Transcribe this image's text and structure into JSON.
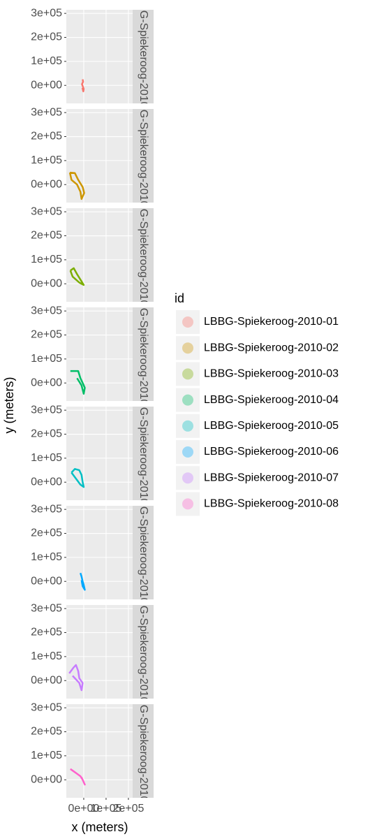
{
  "chart_data": {
    "type": "line",
    "x_label": "x (meters)",
    "y_label": "y (meters)",
    "legend_title": "id",
    "xlim": [
      -78000,
      219000
    ],
    "ylim": [
      -75000,
      315000
    ],
    "xticks": [
      {
        "value": 0,
        "label": "0e+00"
      },
      {
        "value": 100000,
        "label": "1e+05"
      },
      {
        "value": 200000,
        "label": "2e+05"
      }
    ],
    "yticks": [
      {
        "value": 0,
        "label": "0e+00"
      },
      {
        "value": 100000,
        "label": "1e+05"
      },
      {
        "value": 200000,
        "label": "2e+05"
      },
      {
        "value": 300000,
        "label": "3e+05"
      }
    ],
    "grid": true,
    "series": [
      {
        "name": "LBBG-Spiekeroog-2010-01",
        "color": "#F8766D",
        "x": [
          -5000,
          -3000,
          -8000,
          -4000,
          0,
          -2000,
          -6000
        ],
        "values": [
          25000,
          15000,
          5000,
          -5000,
          -15000,
          -25000,
          -10000
        ]
      },
      {
        "name": "LBBG-Spiekeroog-2010-02",
        "color": "#CD9600",
        "x": [
          -62000,
          -40000,
          -25000,
          -5000,
          2000,
          -10000,
          -15000,
          -30000,
          -55000,
          -62000
        ],
        "values": [
          50000,
          48000,
          20000,
          -10000,
          -35000,
          -60000,
          -30000,
          0,
          20000,
          50000
        ]
      },
      {
        "name": "LBBG-Spiekeroog-2010-03",
        "color": "#7CAE00",
        "x": [
          -60000,
          -45000,
          -30000,
          -10000,
          0,
          -20000,
          -50000,
          -60000
        ],
        "values": [
          55000,
          65000,
          40000,
          10000,
          -5000,
          5000,
          30000,
          55000
        ]
      },
      {
        "name": "LBBG-Spiekeroog-2010-04",
        "color": "#00BE67",
        "x": [
          -60000,
          -25000,
          -15000,
          -5000,
          5000,
          0,
          -10000,
          -30000
        ],
        "values": [
          50000,
          50000,
          20000,
          0,
          -20000,
          -45000,
          -10000,
          20000
        ]
      },
      {
        "name": "LBBG-Spiekeroog-2010-05",
        "color": "#00BFC4",
        "x": [
          -55000,
          -40000,
          -20000,
          -10000,
          -5000,
          0,
          -15000,
          -35000,
          -55000
        ],
        "values": [
          40000,
          55000,
          50000,
          30000,
          0,
          -20000,
          -10000,
          15000,
          40000
        ]
      },
      {
        "name": "LBBG-Spiekeroog-2010-06",
        "color": "#00A9FF",
        "x": [
          -15000,
          -10000,
          -5000,
          0,
          5000,
          -5000,
          -10000
        ],
        "values": [
          35000,
          20000,
          0,
          -15000,
          -35000,
          -20000,
          5000
        ]
      },
      {
        "name": "LBBG-Spiekeroog-2010-07",
        "color": "#C77CFF",
        "x": [
          -65000,
          -45000,
          -35000,
          -25000,
          -20000,
          -5000,
          -10000,
          -20000,
          -50000
        ],
        "values": [
          30000,
          55000,
          65000,
          40000,
          10000,
          -10000,
          -40000,
          -10000,
          20000
        ]
      },
      {
        "name": "LBBG-Spiekeroog-2010-08",
        "color": "#FF61CC",
        "x": [
          -60000,
          -45000,
          -30000,
          -15000,
          -5000,
          5000,
          -10000
        ],
        "values": [
          45000,
          35000,
          25000,
          15000,
          0,
          -20000,
          10000
        ]
      }
    ]
  }
}
